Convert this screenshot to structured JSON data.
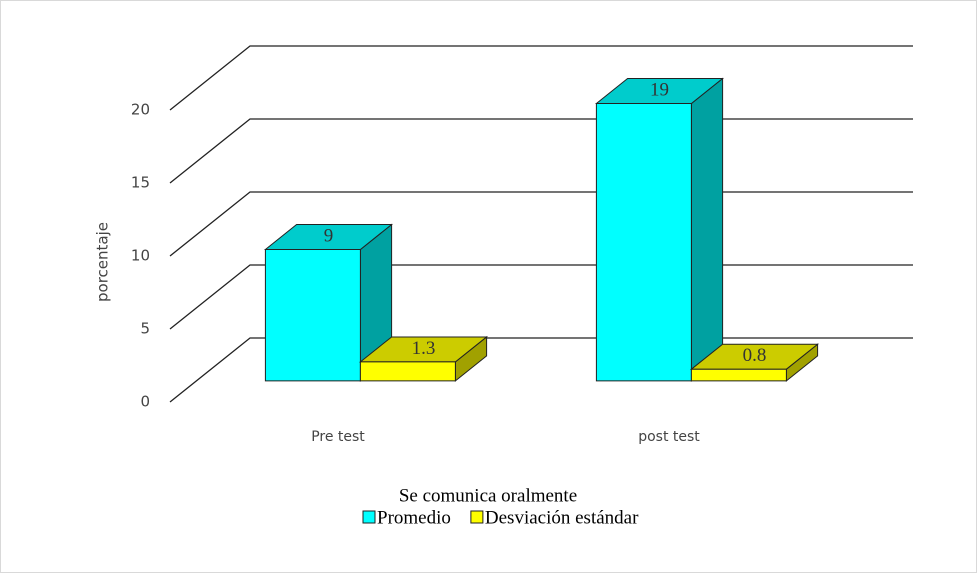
{
  "chart_data": {
    "type": "bar3d",
    "title": "Se comunica oralmente",
    "y_label": "porcentaje",
    "categories": [
      "Pre test",
      "post  test"
    ],
    "series": [
      {
        "name": "Promedio",
        "color": "#00ffff",
        "values": [
          9,
          19
        ]
      },
      {
        "name": "Desviación estándar",
        "color": "#ffff00",
        "values": [
          1.3,
          0.8
        ]
      }
    ],
    "ylim": [
      0,
      20
    ],
    "yticks": [
      0,
      5,
      10,
      15,
      20
    ],
    "grid": true
  }
}
